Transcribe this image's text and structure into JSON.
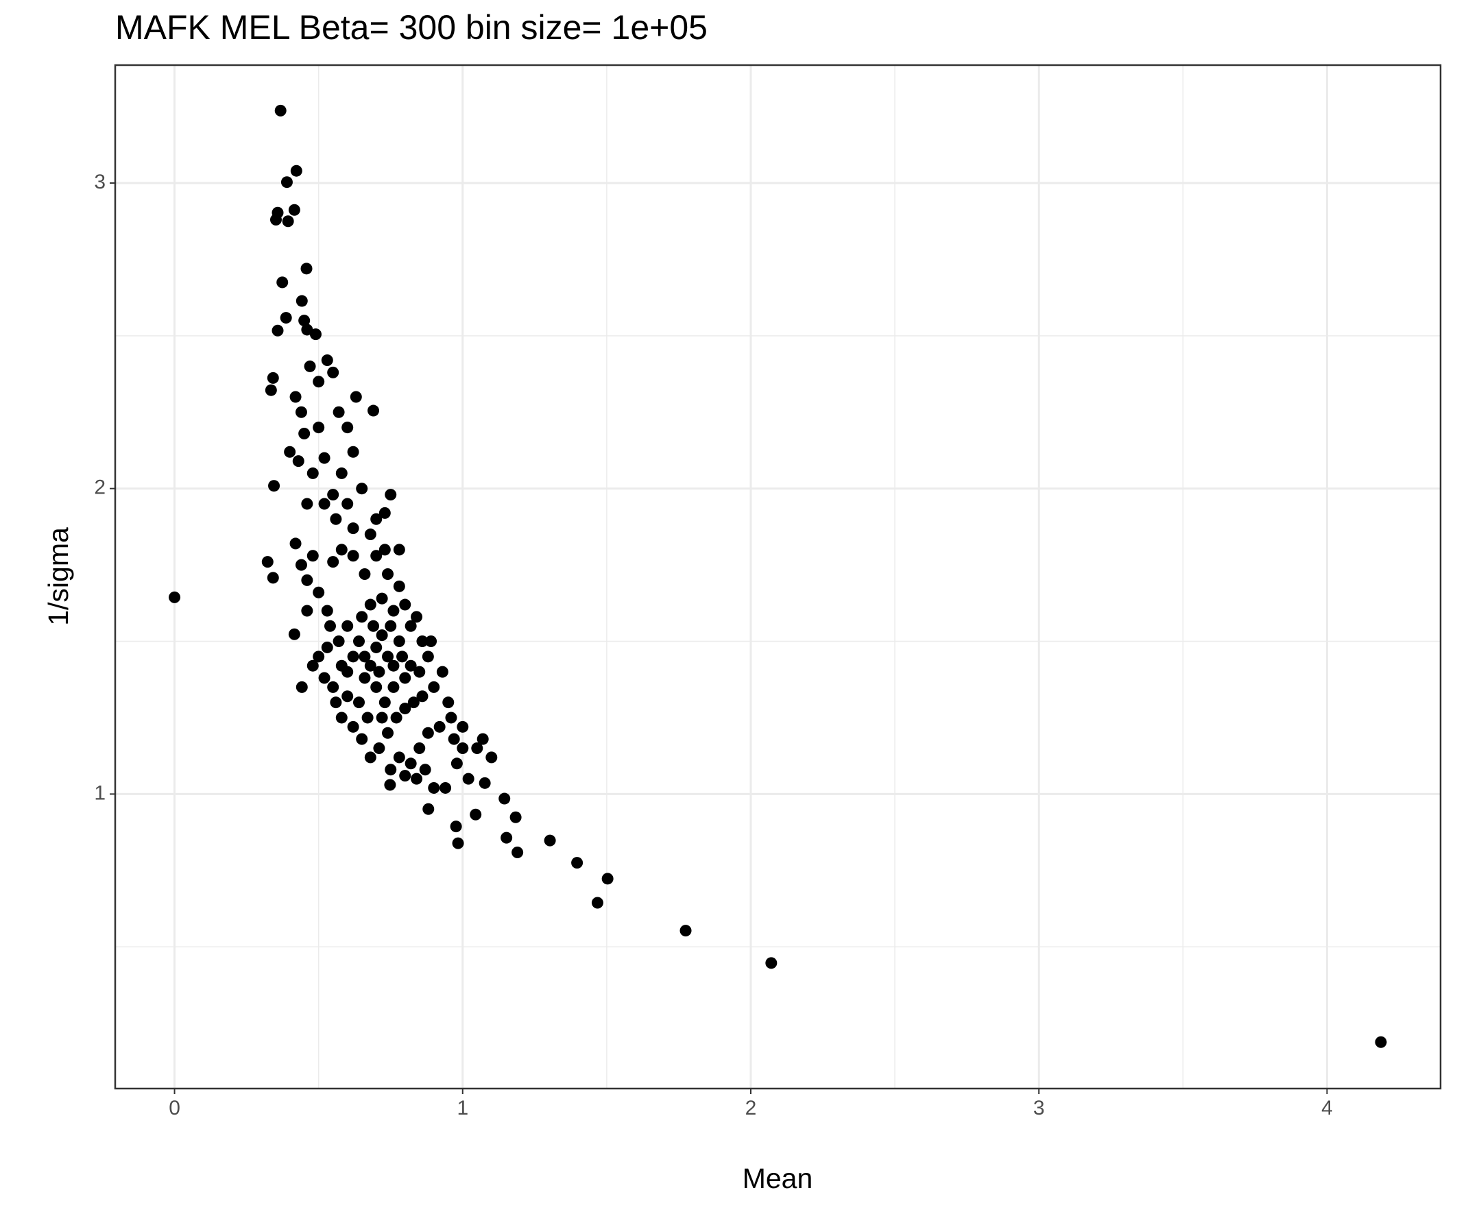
{
  "chart_data": {
    "type": "scatter",
    "title": "MAFK MEL  Beta=  300  bin size=  1e+05",
    "xlabel": "Mean",
    "ylabel": "1/sigma",
    "color": "#000000",
    "grid": true,
    "xlim": [
      -0.206,
      4.394
    ],
    "ylim": [
      0.036,
      3.386
    ],
    "xticks": [
      0,
      1,
      2,
      3,
      4
    ],
    "yticks": [
      1,
      2,
      3
    ],
    "x": [
      0,
      0.368,
      0.423,
      0.39,
      0.416,
      0.358,
      0.352,
      0.394,
      0.458,
      0.374,
      0.442,
      0.387,
      0.358,
      0.49,
      0.342,
      0.335,
      0.69,
      0.345,
      0.323,
      0.342,
      0.416,
      0.442,
      0.748,
      0.881,
      0.977,
      0.984,
      1.045,
      1.077,
      1.145,
      1.152,
      1.184,
      1.19,
      1.303,
      1.397,
      1.503,
      1.468,
      1.774,
      2.071,
      4.187,
      0.42,
      0.44,
      0.45,
      0.4,
      0.43,
      0.48,
      0.5,
      0.52,
      0.55,
      0.53,
      0.5,
      0.57,
      0.6,
      0.62,
      0.63,
      0.58,
      0.55,
      0.6,
      0.65,
      0.7,
      0.75,
      0.73,
      0.68,
      0.62,
      0.56,
      0.52,
      0.46,
      0.42,
      0.44,
      0.46,
      0.48,
      0.5,
      0.53,
      0.55,
      0.58,
      0.62,
      0.66,
      0.7,
      0.73,
      0.78,
      0.74,
      0.78,
      0.8,
      0.76,
      0.72,
      0.68,
      0.65,
      0.6,
      0.57,
      0.53,
      0.5,
      0.48,
      0.52,
      0.55,
      0.56,
      0.58,
      0.62,
      0.64,
      0.66,
      0.68,
      0.7,
      0.72,
      0.75,
      0.78,
      0.82,
      0.84,
      0.86,
      0.89,
      0.88,
      0.85,
      0.82,
      0.8,
      0.76,
      0.73,
      0.7,
      0.67,
      0.65,
      0.68,
      0.71,
      0.74,
      0.77,
      0.8,
      0.83,
      0.86,
      0.9,
      0.93,
      0.95,
      0.96,
      0.92,
      0.88,
      0.85,
      0.82,
      0.78,
      0.75,
      0.8,
      0.84,
      0.87,
      0.9,
      0.94,
      0.98,
      1.0,
      1.02,
      1.05,
      1.07,
      1.1,
      1.0,
      0.97,
      0.6,
      0.62,
      0.64,
      0.66,
      0.69,
      0.71,
      0.74,
      0.76,
      0.79,
      0.72,
      0.6,
      0.58,
      0.54,
      0.46,
      0.47,
      0.46,
      0.45
    ],
    "y": [
      1.644,
      3.237,
      3.04,
      3.003,
      2.912,
      2.903,
      2.88,
      2.875,
      2.72,
      2.675,
      2.614,
      2.559,
      2.517,
      2.505,
      2.362,
      2.322,
      2.255,
      2.009,
      1.76,
      1.708,
      1.523,
      1.35,
      1.03,
      0.951,
      0.894,
      0.839,
      0.933,
      1.036,
      0.985,
      0.857,
      0.924,
      0.809,
      0.848,
      0.775,
      0.723,
      0.644,
      0.553,
      0.447,
      0.188,
      2.3,
      2.25,
      2.18,
      2.12,
      2.09,
      2.05,
      2.2,
      2.1,
      2.38,
      2.42,
      2.35,
      2.25,
      2.2,
      2.12,
      2.3,
      2.05,
      1.98,
      1.95,
      2.0,
      1.9,
      1.98,
      1.92,
      1.85,
      1.87,
      1.9,
      1.95,
      1.95,
      1.82,
      1.75,
      1.7,
      1.78,
      1.66,
      1.6,
      1.76,
      1.8,
      1.78,
      1.72,
      1.78,
      1.8,
      1.8,
      1.72,
      1.68,
      1.62,
      1.6,
      1.64,
      1.62,
      1.58,
      1.55,
      1.5,
      1.48,
      1.45,
      1.42,
      1.38,
      1.35,
      1.3,
      1.25,
      1.22,
      1.3,
      1.38,
      1.42,
      1.48,
      1.52,
      1.55,
      1.5,
      1.55,
      1.58,
      1.5,
      1.5,
      1.45,
      1.4,
      1.42,
      1.38,
      1.35,
      1.3,
      1.35,
      1.25,
      1.18,
      1.12,
      1.15,
      1.2,
      1.25,
      1.28,
      1.3,
      1.32,
      1.35,
      1.4,
      1.3,
      1.25,
      1.22,
      1.2,
      1.15,
      1.1,
      1.12,
      1.08,
      1.06,
      1.05,
      1.08,
      1.02,
      1.02,
      1.1,
      1.15,
      1.05,
      1.15,
      1.18,
      1.12,
      1.22,
      1.18,
      1.4,
      1.45,
      1.5,
      1.45,
      1.55,
      1.4,
      1.45,
      1.42,
      1.45,
      1.25,
      1.32,
      1.42,
      1.55,
      1.6,
      2.4,
      2.52,
      2.55
    ]
  }
}
